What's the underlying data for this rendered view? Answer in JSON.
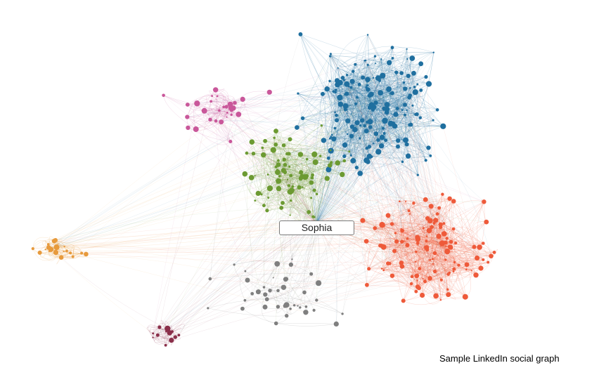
{
  "graph": {
    "center_label": "Sophia",
    "caption": "Sample LinkedIn social graph"
  },
  "colors": {
    "blue": "#1f6f9f",
    "green": "#6c9a32",
    "red": "#ee5a3a",
    "pink": "#c9579a",
    "orange": "#e79a3c",
    "maroon": "#8a2f4a",
    "gray": "#7f7f7f"
  },
  "clusters": [
    {
      "name": "blue",
      "color": "#1f6f9f"
    },
    {
      "name": "green",
      "color": "#6c9a32"
    },
    {
      "name": "red",
      "color": "#ee5a3a"
    },
    {
      "name": "pink",
      "color": "#c9579a"
    },
    {
      "name": "orange",
      "color": "#e79a3c"
    },
    {
      "name": "maroon",
      "color": "#8a2f4a"
    },
    {
      "name": "gray",
      "color": "#7f7f7f"
    }
  ]
}
